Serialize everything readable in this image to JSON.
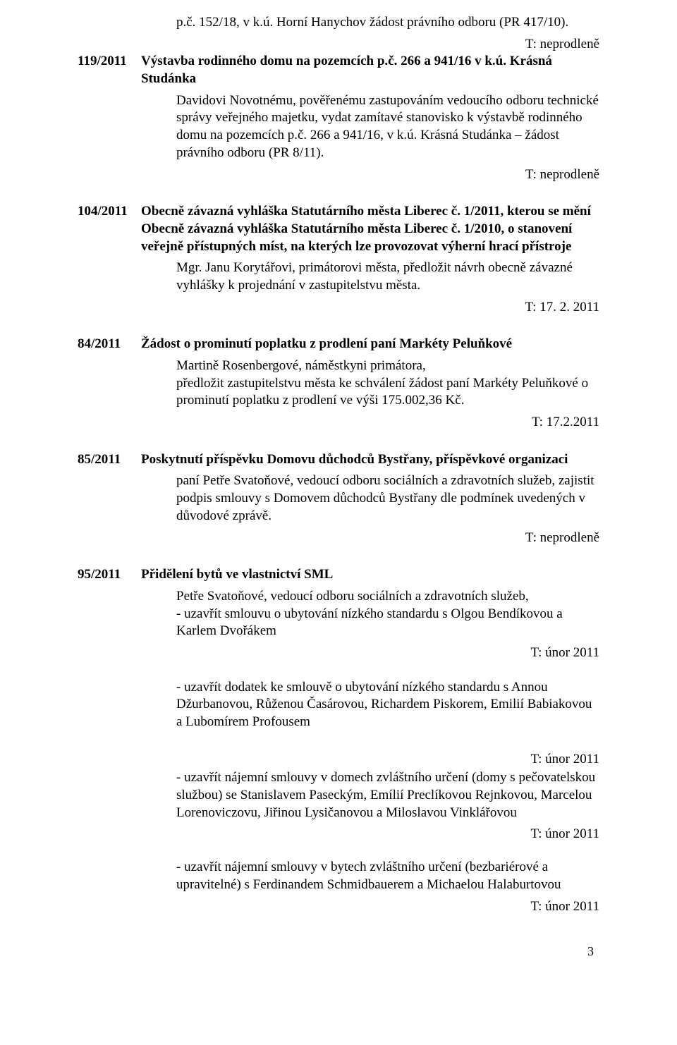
{
  "colors": {
    "text": "#000000",
    "background": "#ffffff"
  },
  "typography": {
    "family": "Times New Roman",
    "body_size_pt": 14,
    "heading_weight": "bold"
  },
  "tail": {
    "line": "p.č. 152/18, v k.ú. Horní Hanychov žádost právního odboru (PR 417/10).",
    "deadline": "T: neprodleně"
  },
  "items": [
    {
      "num": "119/2011",
      "heading": "Výstavba rodinného domu na pozemcích p.č. 266 a 941/16 v k.ú. Krásná Studánka",
      "body": "Davidovi Novotnému, pověřenému zastupováním vedoucího odboru technické správy veřejného majetku, vydat zamítavé stanovisko k výstavbě rodinného domu na pozemcích p.č. 266 a 941/16, v k.ú. Krásná Studánka – žádost právního odboru (PR 8/11).",
      "deadline": "T: neprodleně"
    },
    {
      "num": "104/2011",
      "heading": "Obecně závazná vyhláška Statutárního města Liberec č. 1/2011, kterou se mění Obecně závazná vyhláška Statutárního města Liberec č. 1/2010, o stanovení veřejně přístupných míst, na kterých lze provozovat výherní hrací přístroje",
      "body": "Mgr. Janu Korytářovi, primátorovi města, předložit návrh obecně závazné vyhlášky k projednání v zastupitelstvu města.",
      "deadline": "T: 17. 2. 2011"
    },
    {
      "num": "84/2011",
      "heading": "Žádost o prominutí poplatku z prodlení paní Markéty Peluňkové",
      "body": "Martině Rosenbergové, náměstkyni primátora,\npředložit zastupitelstvu města ke schválení žádost paní Markéty Peluňkové o prominutí poplatku z prodlení ve výši 175.002,36 Kč.",
      "deadline": "T: 17.2.2011"
    },
    {
      "num": "85/2011",
      "heading": "Poskytnutí příspěvku  Domovu důchodců Bystřany, příspěvkové organizaci",
      "body": "paní Petře Svatoňové, vedoucí odboru sociálních a zdravotních služeb, zajistit podpis smlouvy s Domovem důchodců Bystřany dle podmínek uvedených v důvodové zprávě.",
      "deadline": "T: neprodleně"
    }
  ],
  "byty": {
    "num": "95/2011",
    "heading": "Přidělení bytů ve vlastnictví SML",
    "p1": "Petře Svatoňové, vedoucí odboru sociálních a zdravotních služeb,\n- uzavřít smlouvu o ubytování nízkého standardu s Olgou Bendíkovou a Karlem Dvořákem",
    "d1": "T: únor  2011",
    "p2": "- uzavřít dodatek ke smlouvě o ubytování nízkého standardu s Annou Džurbanovou, Růženou Časárovou, Richardem Piskorem, Emilií Babiakovou a Lubomírem Profousem",
    "d2": "T: únor 2011",
    "p3": "- uzavřít nájemní smlouvy v domech zvláštního určení (domy s pečovatelskou službou) se Stanislavem Paseckým, Emílií Preclíkovou Rejnkovou, Marcelou Lorenoviczovu, Jiřinou Lysičanovou a Miloslavou Vinklářovou",
    "d3": "T: únor 2011",
    "p4": "- uzavřít nájemní smlouvy v bytech zvláštního určení (bezbariérové a upravitelné) s Ferdinandem Schmidbauerem a Michaelou Halaburtovou",
    "d4": "T: únor 2011"
  },
  "page_number": "3"
}
